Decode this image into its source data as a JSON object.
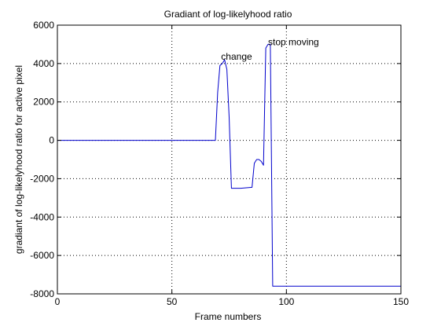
{
  "chart_data": {
    "type": "line",
    "title": "Gradiant of log-likelyhood ratio",
    "xlabel": "Frame numbers",
    "ylabel": "gradiant of log-likelyhood ratio for active pixel",
    "xlim": [
      0,
      150
    ],
    "ylim": [
      -8000,
      6000
    ],
    "xticks": [
      0,
      50,
      100,
      150
    ],
    "yticks": [
      -8000,
      -6000,
      -4000,
      -2000,
      0,
      2000,
      4000,
      6000
    ],
    "xtick_labels": [
      "0",
      "50",
      "100",
      "150"
    ],
    "ytick_labels": [
      "-8000",
      "-6000",
      "-4000",
      "-2000",
      "0",
      "2000",
      "4000",
      "6000"
    ],
    "grid": true,
    "line_color": "#0000cc",
    "series": [
      {
        "x": [
          0,
          69,
          70,
          71,
          72,
          73,
          74,
          75,
          76,
          77,
          80,
          85,
          86,
          87,
          88,
          89,
          90,
          91,
          92,
          93,
          94,
          95,
          150
        ],
        "y": [
          0,
          0,
          2500,
          3900,
          4000,
          4200,
          3700,
          1200,
          -2500,
          -2500,
          -2500,
          -2450,
          -1200,
          -1000,
          -1000,
          -1100,
          -1300,
          4800,
          5000,
          5000,
          -7600,
          -7600,
          -7600
        ]
      }
    ],
    "annotations": [
      {
        "text": "change",
        "x": 71.5,
        "y": 4200
      },
      {
        "text": "stop moving",
        "x": 92,
        "y": 4950
      }
    ]
  }
}
